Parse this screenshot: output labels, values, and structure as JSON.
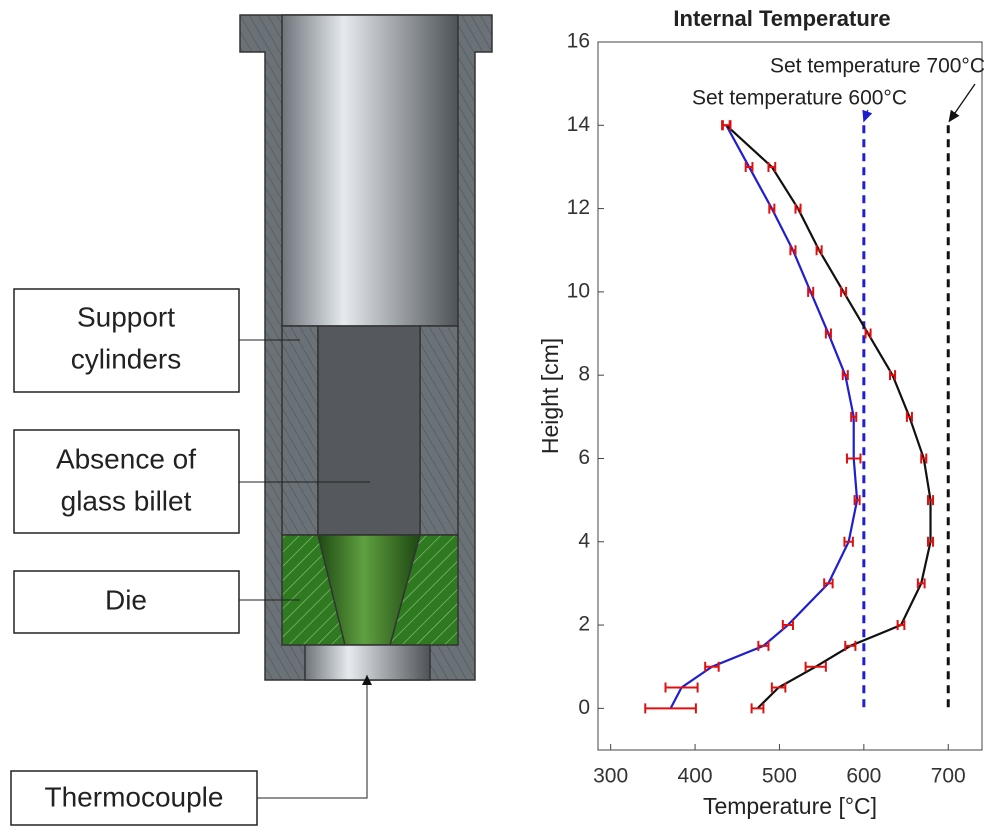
{
  "diagram": {
    "labels": [
      [
        "Support",
        "cylinders"
      ],
      [
        "Absence of",
        "glass billet"
      ],
      [
        "Die"
      ],
      [
        "Thermocouple"
      ]
    ]
  },
  "chart_data": {
    "type": "line",
    "title": "Internal Temperature",
    "x_label": "Temperature [°C]",
    "y_label": "Height [cm]",
    "xlim": [
      285,
      740
    ],
    "xticks": [
      300,
      400,
      500,
      600,
      700
    ],
    "ylim": [
      -1,
      16
    ],
    "yticks": [
      0,
      2,
      4,
      6,
      8,
      10,
      12,
      14,
      16
    ],
    "y": [
      14,
      13,
      12,
      11,
      10,
      9,
      8,
      7,
      6,
      5,
      4,
      3,
      2,
      1.5,
      1,
      0.5,
      0
    ],
    "error_color": "#e01010",
    "series": [
      {
        "name": "Set temperature 600°C",
        "color": "#1f1fd0",
        "x": [
          437,
          464,
          491,
          516,
          537,
          558,
          578,
          588,
          588,
          592,
          582,
          558,
          510,
          481,
          420,
          384,
          371
        ],
        "x_err": [
          4,
          4,
          3,
          3,
          3,
          3,
          3,
          3,
          8,
          3,
          5,
          5,
          6,
          6,
          8,
          19,
          30
        ]
      },
      {
        "name": "Set temperature 700°C",
        "color": "#111111",
        "x": [
          437,
          491,
          522,
          547,
          576,
          605,
          634,
          654,
          671,
          679,
          679,
          668,
          644,
          584,
          543,
          499,
          474
        ],
        "x_err": [
          5,
          4,
          3,
          3,
          3,
          3,
          3,
          3,
          3,
          3,
          3,
          4,
          4,
          6,
          12,
          8,
          7
        ]
      }
    ],
    "reference_lines": [
      {
        "x": 600,
        "color": "#1f1fd0"
      },
      {
        "x": 700,
        "color": "#111111"
      }
    ]
  }
}
